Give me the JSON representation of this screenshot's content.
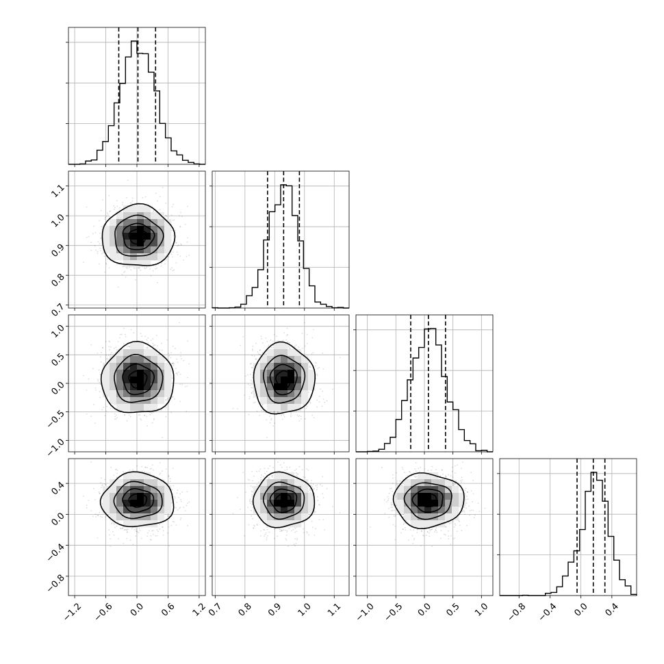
{
  "chart_data": {
    "type": "corner",
    "parameters": 4,
    "ranges": [
      [
        -1.32,
        1.32
      ],
      [
        0.69,
        1.15
      ],
      [
        -1.2,
        1.2
      ],
      [
        -1.05,
        0.72
      ]
    ],
    "ticks": [
      [
        -1.2,
        -0.6,
        0.0,
        0.6,
        1.2
      ],
      [
        0.7,
        0.8,
        0.9,
        1.0,
        1.1
      ],
      [
        -1.0,
        -0.5,
        0.0,
        0.5,
        1.0
      ],
      [
        -0.8,
        -0.4,
        0.0,
        0.4
      ]
    ],
    "tick_labels": [
      [
        "−1.2",
        "−0.6",
        "0.0",
        "0.6",
        "1.2"
      ],
      [
        "0.7",
        "0.8",
        "0.9",
        "1.0",
        "1.1"
      ],
      [
        "−1.0",
        "−0.5",
        "0.0",
        "0.5",
        "1.0"
      ],
      [
        "−0.8",
        "−0.4",
        "0.0",
        "0.4"
      ]
    ],
    "marginals": [
      {
        "mean": 0.02,
        "sd": 0.34,
        "skew": 0,
        "quantiles": [
          -0.35,
          0.02,
          0.36
        ],
        "bins": 24
      },
      {
        "mean": 0.93,
        "sd": 0.05,
        "skew": 0,
        "quantiles": [
          0.876,
          0.93,
          0.983
        ],
        "bins": 24
      },
      {
        "mean": 0.07,
        "sd": 0.3,
        "skew": 0,
        "quantiles": [
          -0.24,
          0.07,
          0.37
        ],
        "bins": 24
      },
      {
        "mean": 0.18,
        "sd": 0.17,
        "skew": -0.65,
        "quantiles": [
          -0.05,
          0.16,
          0.31
        ],
        "bins": 24
      }
    ],
    "contour_levels": [
      0.12,
      0.39,
      0.68,
      0.86
    ],
    "grid": true,
    "colors": {
      "line": "#000000",
      "grid": "#b0b0b0",
      "scatter": "#000000"
    }
  }
}
